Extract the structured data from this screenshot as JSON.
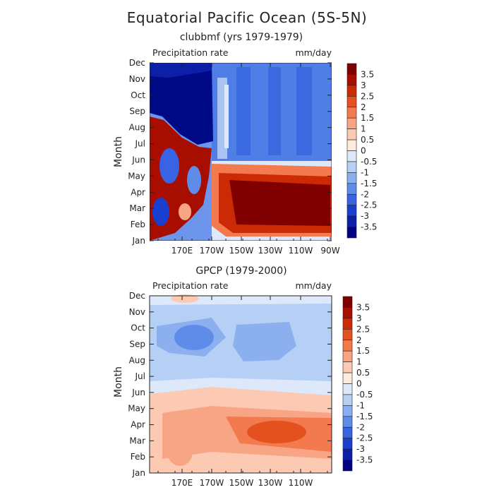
{
  "title": "Equatorial Pacific Ocean (5S-5N)",
  "chart_data": [
    {
      "type": "heatmap",
      "subtitle": "clubbmf (yrs 1979-1979)",
      "variable": "Precipitation rate",
      "units": "mm/day",
      "ylabel": "Month",
      "xticks": [
        "170E",
        "170W",
        "150W",
        "130W",
        "110W",
        "90W"
      ],
      "yticks": [
        "Jan",
        "Feb",
        "Mar",
        "Apr",
        "May",
        "Jun",
        "Jul",
        "Aug",
        "Sep",
        "Oct",
        "Nov",
        "Dec"
      ],
      "colorbar_labels": [
        "3.5",
        "3",
        "2.5",
        "2",
        "1.5",
        "1",
        "0.5",
        "0",
        "-0.5",
        "-1",
        "-1.5",
        "-2",
        "-2.5",
        "-3",
        "-3.5"
      ],
      "x_range": [
        "150E",
        "90W"
      ],
      "description_regions": [
        {
          "region": "150E-175W, Aug-Dec",
          "value": -3.6
        },
        {
          "region": "150E-175W, Jan-Jul",
          "value": 3.6
        },
        {
          "region": "175W-90W, Jun-Dec",
          "value": -1.2
        },
        {
          "region": "160W-95W, Feb-May",
          "value": 3.6
        }
      ]
    },
    {
      "type": "heatmap",
      "subtitle": "GPCP (1979-2000)",
      "variable": "Precipitation rate",
      "units": "mm/day",
      "ylabel": "Month",
      "xticks": [
        "170E",
        "170W",
        "150W",
        "130W",
        "110W"
      ],
      "yticks": [
        "Jan",
        "Feb",
        "Mar",
        "Apr",
        "May",
        "Jun",
        "Jul",
        "Aug",
        "Sep",
        "Oct",
        "Nov",
        "Dec"
      ],
      "colorbar_labels": [
        "3.5",
        "3",
        "2.5",
        "2",
        "1.5",
        "1",
        "0.5",
        "0",
        "-0.5",
        "-1",
        "-1.5",
        "-2",
        "-2.5",
        "-3",
        "-3.5"
      ],
      "description_regions": [
        {
          "region": "Jul-Dec",
          "value": -1.0
        },
        {
          "region": "Sep-Oct 175E",
          "value": -1.8
        },
        {
          "region": "Jan-May",
          "value": 1.0
        },
        {
          "region": "Mar-Apr 145W-95W",
          "value": 2.2
        }
      ]
    }
  ],
  "colorbar_colors": [
    "#800000",
    "#a80e00",
    "#cc2a06",
    "#e5501f",
    "#f27a4e",
    "#f8a585",
    "#fccab3",
    "#fdebde",
    "#dde9fb",
    "#b6cff5",
    "#8cb0ef",
    "#5f8ce9",
    "#3863e3",
    "#1a3fcf",
    "#0b1fa8",
    "#000080"
  ]
}
